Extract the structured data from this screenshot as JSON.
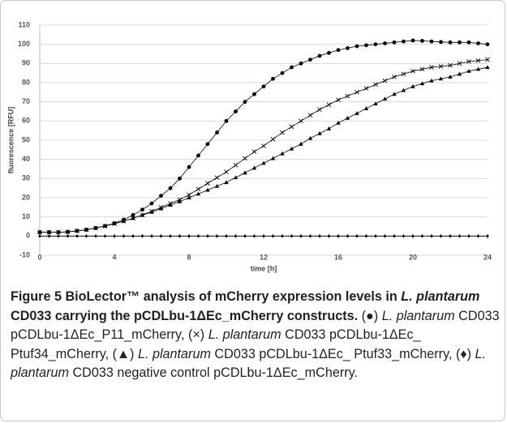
{
  "chart_data": {
    "type": "scatter",
    "x_label": "time [h]",
    "y_label": "fluorescence [RFU]",
    "xlim": [
      0,
      24
    ],
    "xticks": [
      0,
      4,
      8,
      12,
      16,
      20,
      24
    ],
    "ylim": [
      -10,
      110
    ],
    "yticks": [
      -10,
      0,
      10,
      20,
      30,
      40,
      50,
      60,
      70,
      80,
      90,
      100,
      110
    ],
    "grid": true,
    "x": [
      0,
      0.5,
      1,
      1.5,
      2,
      2.5,
      3,
      3.5,
      4,
      4.5,
      5,
      5.5,
      6,
      6.5,
      7,
      7.5,
      8,
      8.5,
      9,
      9.5,
      10,
      10.5,
      11,
      11.5,
      12,
      12.5,
      13,
      13.5,
      14,
      14.5,
      15,
      15.5,
      16,
      16.5,
      17,
      17.5,
      18,
      18.5,
      19,
      19.5,
      20,
      20.5,
      21,
      21.5,
      22,
      22.5,
      23,
      23.5,
      24
    ],
    "series": [
      {
        "marker": "circle",
        "color": "#000000",
        "values": [
          2,
          2,
          2,
          2.2,
          2.7,
          3.3,
          4.2,
          5.3,
          6.7,
          8.6,
          11,
          13.8,
          17,
          21,
          25,
          30,
          36,
          42,
          48,
          54,
          60,
          65,
          70,
          74,
          78,
          82,
          85,
          88,
          90,
          92,
          94,
          95.5,
          97,
          98,
          99,
          99.5,
          100,
          100.5,
          101,
          101.5,
          102,
          101.8,
          101.5,
          101.2,
          101,
          101,
          101,
          100.5,
          100
        ]
      },
      {
        "marker": "cross",
        "color": "#000000",
        "values": [
          2,
          2,
          2,
          2.2,
          2.7,
          3.3,
          4.2,
          5.2,
          6.5,
          7.8,
          9.3,
          11,
          13,
          15,
          17,
          19,
          21.5,
          24.5,
          27.5,
          30.5,
          33.5,
          37,
          40.5,
          44,
          47,
          50.5,
          54,
          57,
          60,
          63,
          66,
          68.5,
          71,
          73,
          75,
          77,
          79,
          81,
          83,
          84.5,
          86,
          87,
          88,
          88.5,
          89,
          90,
          91,
          91.5,
          92
        ]
      },
      {
        "marker": "triangle",
        "color": "#000000",
        "values": [
          2,
          2,
          2,
          2.2,
          2.7,
          3.3,
          4.2,
          5.2,
          6.5,
          7.8,
          9.3,
          10.9,
          12.5,
          14.3,
          16.2,
          18,
          20,
          22,
          24,
          26,
          28,
          30.5,
          33,
          35.5,
          38,
          40.5,
          43,
          45.5,
          48,
          51,
          53.5,
          56,
          59,
          61.5,
          64,
          66.5,
          69,
          71.5,
          74,
          76,
          78,
          79.5,
          81,
          82,
          83,
          84.5,
          86,
          87,
          88
        ]
      },
      {
        "marker": "diamond",
        "color": "#000000",
        "values": [
          0,
          0,
          0,
          0,
          0,
          0,
          0,
          0,
          0,
          0,
          0,
          0,
          0,
          0,
          0,
          0,
          0,
          0,
          0,
          0,
          0,
          0,
          0,
          0,
          0,
          0,
          0,
          0,
          0,
          0,
          0,
          0,
          0,
          0,
          0,
          0,
          0,
          0,
          0,
          0,
          0,
          0,
          0,
          0,
          0,
          0,
          0,
          0,
          0
        ]
      }
    ]
  },
  "caption": [
    {
      "text": "Figure 5 BioLector™ analysis of mCherry expression levels in ",
      "style": "bold"
    },
    {
      "text": "L. plantarum",
      "style": "bold-italic"
    },
    {
      "text": " CD033 carrying the pCDLbu-1ΔEc_mCherry constructs.",
      "style": "bold"
    },
    {
      "text": " (●) ",
      "style": "normal"
    },
    {
      "text": "L. plantarum",
      "style": "italic"
    },
    {
      "text": " CD033 pCDLbu-1ΔEc_P11_mCherry, (×) ",
      "style": "normal"
    },
    {
      "text": "L. plantarum",
      "style": "italic"
    },
    {
      "text": " CD033 pCDLbu-1ΔEc_ Ptuf34_mCherry, (▲) ",
      "style": "normal"
    },
    {
      "text": "L. plantarum",
      "style": "italic"
    },
    {
      "text": " CD033 pCDLbu-1ΔEc_ Ptuf33_mCherry, (♦) ",
      "style": "normal"
    },
    {
      "text": "L. plantarum",
      "style": "italic"
    },
    {
      "text": " CD033 negative control pCDLbu-1ΔEc_mCherry.",
      "style": "normal"
    }
  ]
}
